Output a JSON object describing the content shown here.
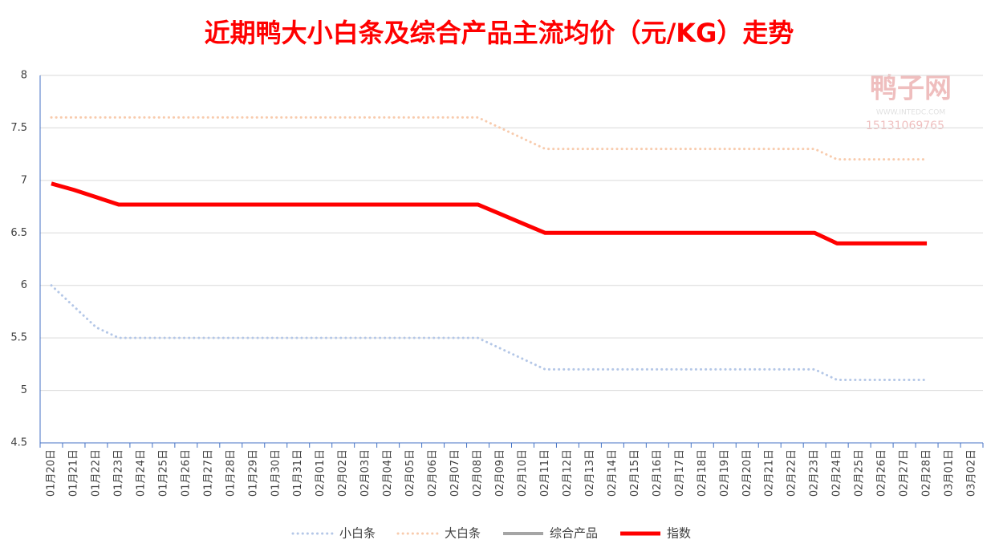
{
  "chart_data": {
    "type": "line",
    "title": "近期鸭大小白条及综合产品主流均价（元/KG）走势",
    "watermark": [
      "鸭子网",
      "WWW.INTEDC.COM",
      "15131069765"
    ],
    "categories": [
      "01月20日",
      "01月21日",
      "01月22日",
      "01月23日",
      "01月24日",
      "01月25日",
      "01月26日",
      "01月27日",
      "01月28日",
      "01月29日",
      "01月30日",
      "01月31日",
      "02月01日",
      "02月02日",
      "02月03日",
      "02月04日",
      "02月05日",
      "02月06日",
      "02月07日",
      "02月08日",
      "02月09日",
      "02月10日",
      "02月11日",
      "02月12日",
      "02月13日",
      "02月14日",
      "02月15日",
      "02月16日",
      "02月17日",
      "02月18日",
      "02月19日",
      "02月20日",
      "02月21日",
      "02月22日",
      "02月23日",
      "02月24日",
      "02月25日",
      "02月26日",
      "02月27日",
      "02月28日",
      "03月01日",
      "03月02日"
    ],
    "series": [
      {
        "name": "小白条",
        "color": "#b4c7e7",
        "style": "dotted",
        "values": [
          6.0,
          5.8,
          5.6,
          5.5,
          5.5,
          5.5,
          5.5,
          5.5,
          5.5,
          5.5,
          5.5,
          5.5,
          5.5,
          5.5,
          5.5,
          5.5,
          5.5,
          5.5,
          5.5,
          5.5,
          5.4,
          5.3,
          5.2,
          5.2,
          5.2,
          5.2,
          5.2,
          5.2,
          5.2,
          5.2,
          5.2,
          5.2,
          5.2,
          5.2,
          5.2,
          5.1,
          5.1,
          5.1,
          5.1,
          5.1,
          null,
          null
        ]
      },
      {
        "name": "大白条",
        "color": "#f8cbad",
        "style": "dotted",
        "values": [
          7.6,
          7.6,
          7.6,
          7.6,
          7.6,
          7.6,
          7.6,
          7.6,
          7.6,
          7.6,
          7.6,
          7.6,
          7.6,
          7.6,
          7.6,
          7.6,
          7.6,
          7.6,
          7.6,
          7.6,
          7.5,
          7.4,
          7.3,
          7.3,
          7.3,
          7.3,
          7.3,
          7.3,
          7.3,
          7.3,
          7.3,
          7.3,
          7.3,
          7.3,
          7.3,
          7.2,
          7.2,
          7.2,
          7.2,
          7.2,
          null,
          null
        ]
      },
      {
        "name": "综合产品",
        "color": "#a5a5a5",
        "style": "solid",
        "values": [
          null,
          null,
          null,
          null,
          null,
          null,
          null,
          null,
          null,
          null,
          null,
          null,
          null,
          null,
          null,
          null,
          null,
          null,
          null,
          null,
          null,
          null,
          null,
          null,
          null,
          null,
          null,
          null,
          null,
          null,
          null,
          null,
          null,
          null,
          null,
          null,
          null,
          null,
          null,
          null,
          null,
          null
        ]
      },
      {
        "name": "指数",
        "color": "#ff0000",
        "style": "thick",
        "values": [
          6.97,
          6.91,
          6.84,
          6.77,
          6.77,
          6.77,
          6.77,
          6.77,
          6.77,
          6.77,
          6.77,
          6.77,
          6.77,
          6.77,
          6.77,
          6.77,
          6.77,
          6.77,
          6.77,
          6.77,
          6.68,
          6.59,
          6.5,
          6.5,
          6.5,
          6.5,
          6.5,
          6.5,
          6.5,
          6.5,
          6.5,
          6.5,
          6.5,
          6.5,
          6.5,
          6.4,
          6.4,
          6.4,
          6.4,
          6.4,
          null,
          null
        ]
      }
    ],
    "ylim": [
      4.5,
      8
    ],
    "yticks": [
      4.5,
      5,
      5.5,
      6,
      6.5,
      7,
      7.5,
      8
    ],
    "grid": true,
    "legend": "bottom"
  }
}
